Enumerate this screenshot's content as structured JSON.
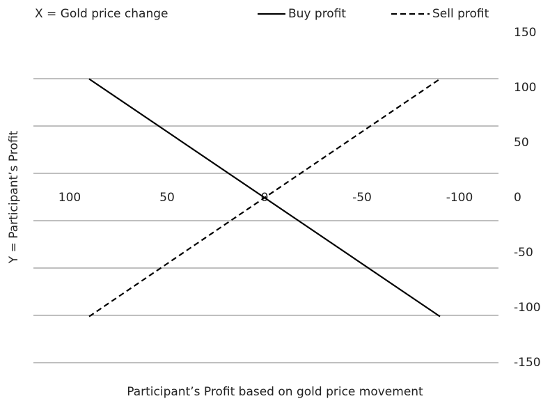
{
  "chart_data": {
    "type": "line",
    "title": "Participant’s Profit based on gold price movement",
    "x_label": "X = Gold price change",
    "y_label": "Y  = Participant’s Profit",
    "x": [
      90,
      -90
    ],
    "series": [
      {
        "name": "Buy profit",
        "color": "#000000",
        "dash": "solid",
        "values": [
          108,
          -108
        ]
      },
      {
        "name": "Sell profit",
        "color": "#000000",
        "dash": "dashed",
        "values": [
          -108,
          108
        ]
      }
    ],
    "xlim": [
      120,
      -120
    ],
    "xticks": [
      100,
      50,
      0,
      -50,
      -100
    ],
    "ylim": [
      -150,
      150
    ],
    "yticks": [
      150,
      100,
      50,
      0,
      -50,
      -100,
      -150
    ],
    "legend": "top"
  }
}
